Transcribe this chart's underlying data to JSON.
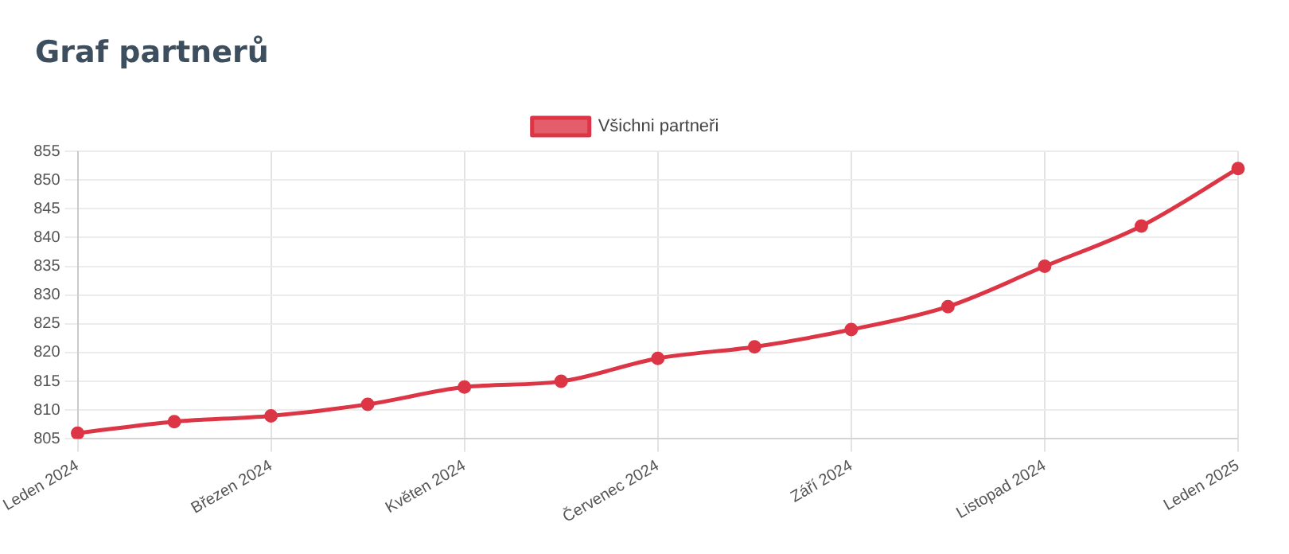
{
  "chart_data": {
    "type": "line",
    "title": "Graf partnerů",
    "categories": [
      "Leden 2024",
      null,
      "Březen 2024",
      null,
      "Květen 2024",
      null,
      "Červenec 2024",
      null,
      "Září 2024",
      null,
      "Listopad 2024",
      null,
      "Leden 2025"
    ],
    "series": [
      {
        "name": "Všichni partneři",
        "color": "#dc3545",
        "values": [
          806,
          808,
          809,
          811,
          814,
          815,
          819,
          821,
          824,
          828,
          835,
          842,
          852
        ]
      }
    ],
    "ylim": [
      805,
      855
    ],
    "yticks": [
      805,
      810,
      815,
      820,
      825,
      830,
      835,
      840,
      845,
      850,
      855
    ],
    "grid": true,
    "legend": "top",
    "marker": "circle",
    "line_style": "solid"
  }
}
